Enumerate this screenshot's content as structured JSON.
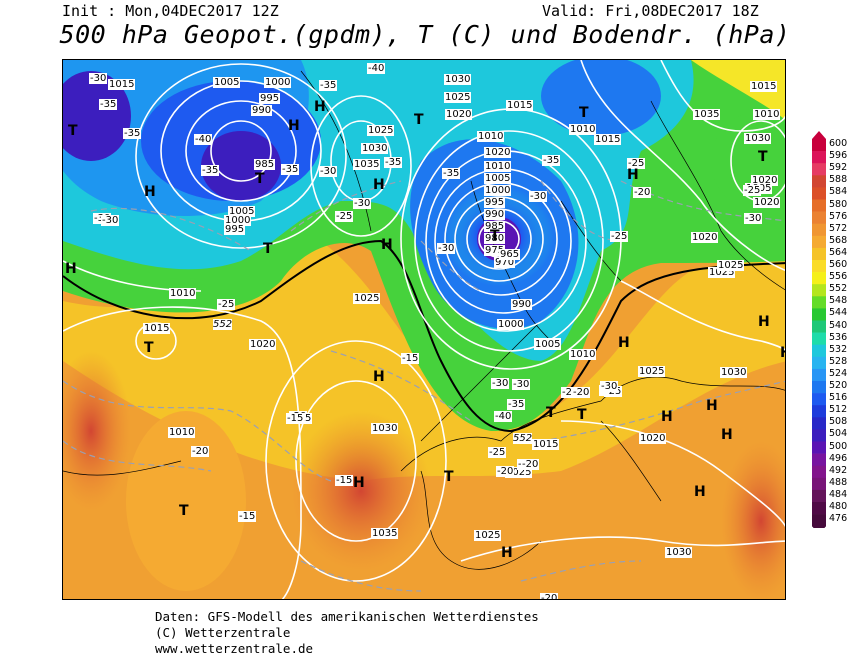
{
  "header": {
    "init": "Init : Mon,04DEC2017 12Z",
    "valid": "Valid: Fri,08DEC2017 18Z",
    "title": "500 hPa Geopot.(gpdm), T (C) und Bodendr. (hPa)"
  },
  "legend": {
    "values": [
      "600",
      "596",
      "592",
      "588",
      "584",
      "580",
      "576",
      "572",
      "568",
      "564",
      "560",
      "556",
      "552",
      "548",
      "544",
      "540",
      "536",
      "532",
      "528",
      "524",
      "520",
      "516",
      "512",
      "508",
      "504",
      "500",
      "496",
      "492",
      "488",
      "484",
      "480",
      "476"
    ],
    "colors": [
      "#c8003c",
      "#dc145a",
      "#e63c64",
      "#d24632",
      "#dc5028",
      "#e66e28",
      "#eb8232",
      "#f09632",
      "#f5aa32",
      "#f5c328",
      "#fadc28",
      "#f5f019",
      "#b4e61e",
      "#64dc28",
      "#28c832",
      "#1ec878",
      "#1edcaa",
      "#1ec8dc",
      "#28b4f0",
      "#2896f5",
      "#1e78f0",
      "#1e5af0",
      "#1e3cdc",
      "#2828c8",
      "#3c1ebe",
      "#5a14b4",
      "#7814a0",
      "#82148c",
      "#781478",
      "#64145a",
      "#500a46",
      "#460a3c"
    ]
  },
  "map": {
    "contour_552_label": "552",
    "pressure_labels": [
      "1015",
      "1005",
      "1000",
      "995",
      "990",
      "985",
      "1025",
      "1030",
      "1035",
      "1020",
      "1010",
      "1015",
      "1030",
      "1025",
      "1020",
      "1010",
      "1005",
      "1000",
      "995",
      "990",
      "985",
      "980",
      "975",
      "970",
      "965",
      "1005",
      "1010",
      "1015",
      "1020",
      "1025",
      "1030",
      "1035",
      "1010",
      "1005",
      "1000",
      "995",
      "990",
      "1000",
      "1005",
      "1010",
      "1015",
      "1020",
      "1025",
      "1030",
      "1035",
      "1030",
      "1025",
      "1020",
      "1015",
      "1010",
      "1020",
      "1030",
      "1025",
      "1025",
      "1015",
      "1020",
      "1010",
      "1005",
      "1025"
    ],
    "temp_labels": [
      "-30",
      "-35",
      "-40",
      "-35",
      "-35",
      "-30",
      "-35",
      "-30",
      "-25",
      "-35",
      "-40",
      "-35",
      "-30",
      "-35",
      "-30",
      "-25",
      "-20",
      "-25",
      "-35",
      "-30",
      "-25",
      "-20",
      "-15",
      "-20",
      "-25",
      "-30",
      "-40",
      "-35",
      "-30",
      "-25",
      "-20",
      "-15",
      "-20",
      "-15",
      "-25",
      "-30",
      "-30",
      "-25",
      "-20",
      "-15",
      "-20",
      "-25",
      "-30",
      "-15",
      "-20"
    ],
    "highs_lows": [
      "T",
      "T",
      "H",
      "H",
      "H",
      "T",
      "T",
      "H",
      "H",
      "T",
      "H",
      "T",
      "H",
      "T",
      "H",
      "H",
      "T",
      "H",
      "T",
      "H",
      "T",
      "H",
      "H",
      "H",
      "T",
      "H",
      "H",
      "T",
      "H"
    ]
  },
  "footer": {
    "line1": "Daten: GFS-Modell des amerikanischen Wetterdienstes",
    "line2": "(C) Wetterzentrale",
    "line3": "www.wetterzentrale.de"
  }
}
